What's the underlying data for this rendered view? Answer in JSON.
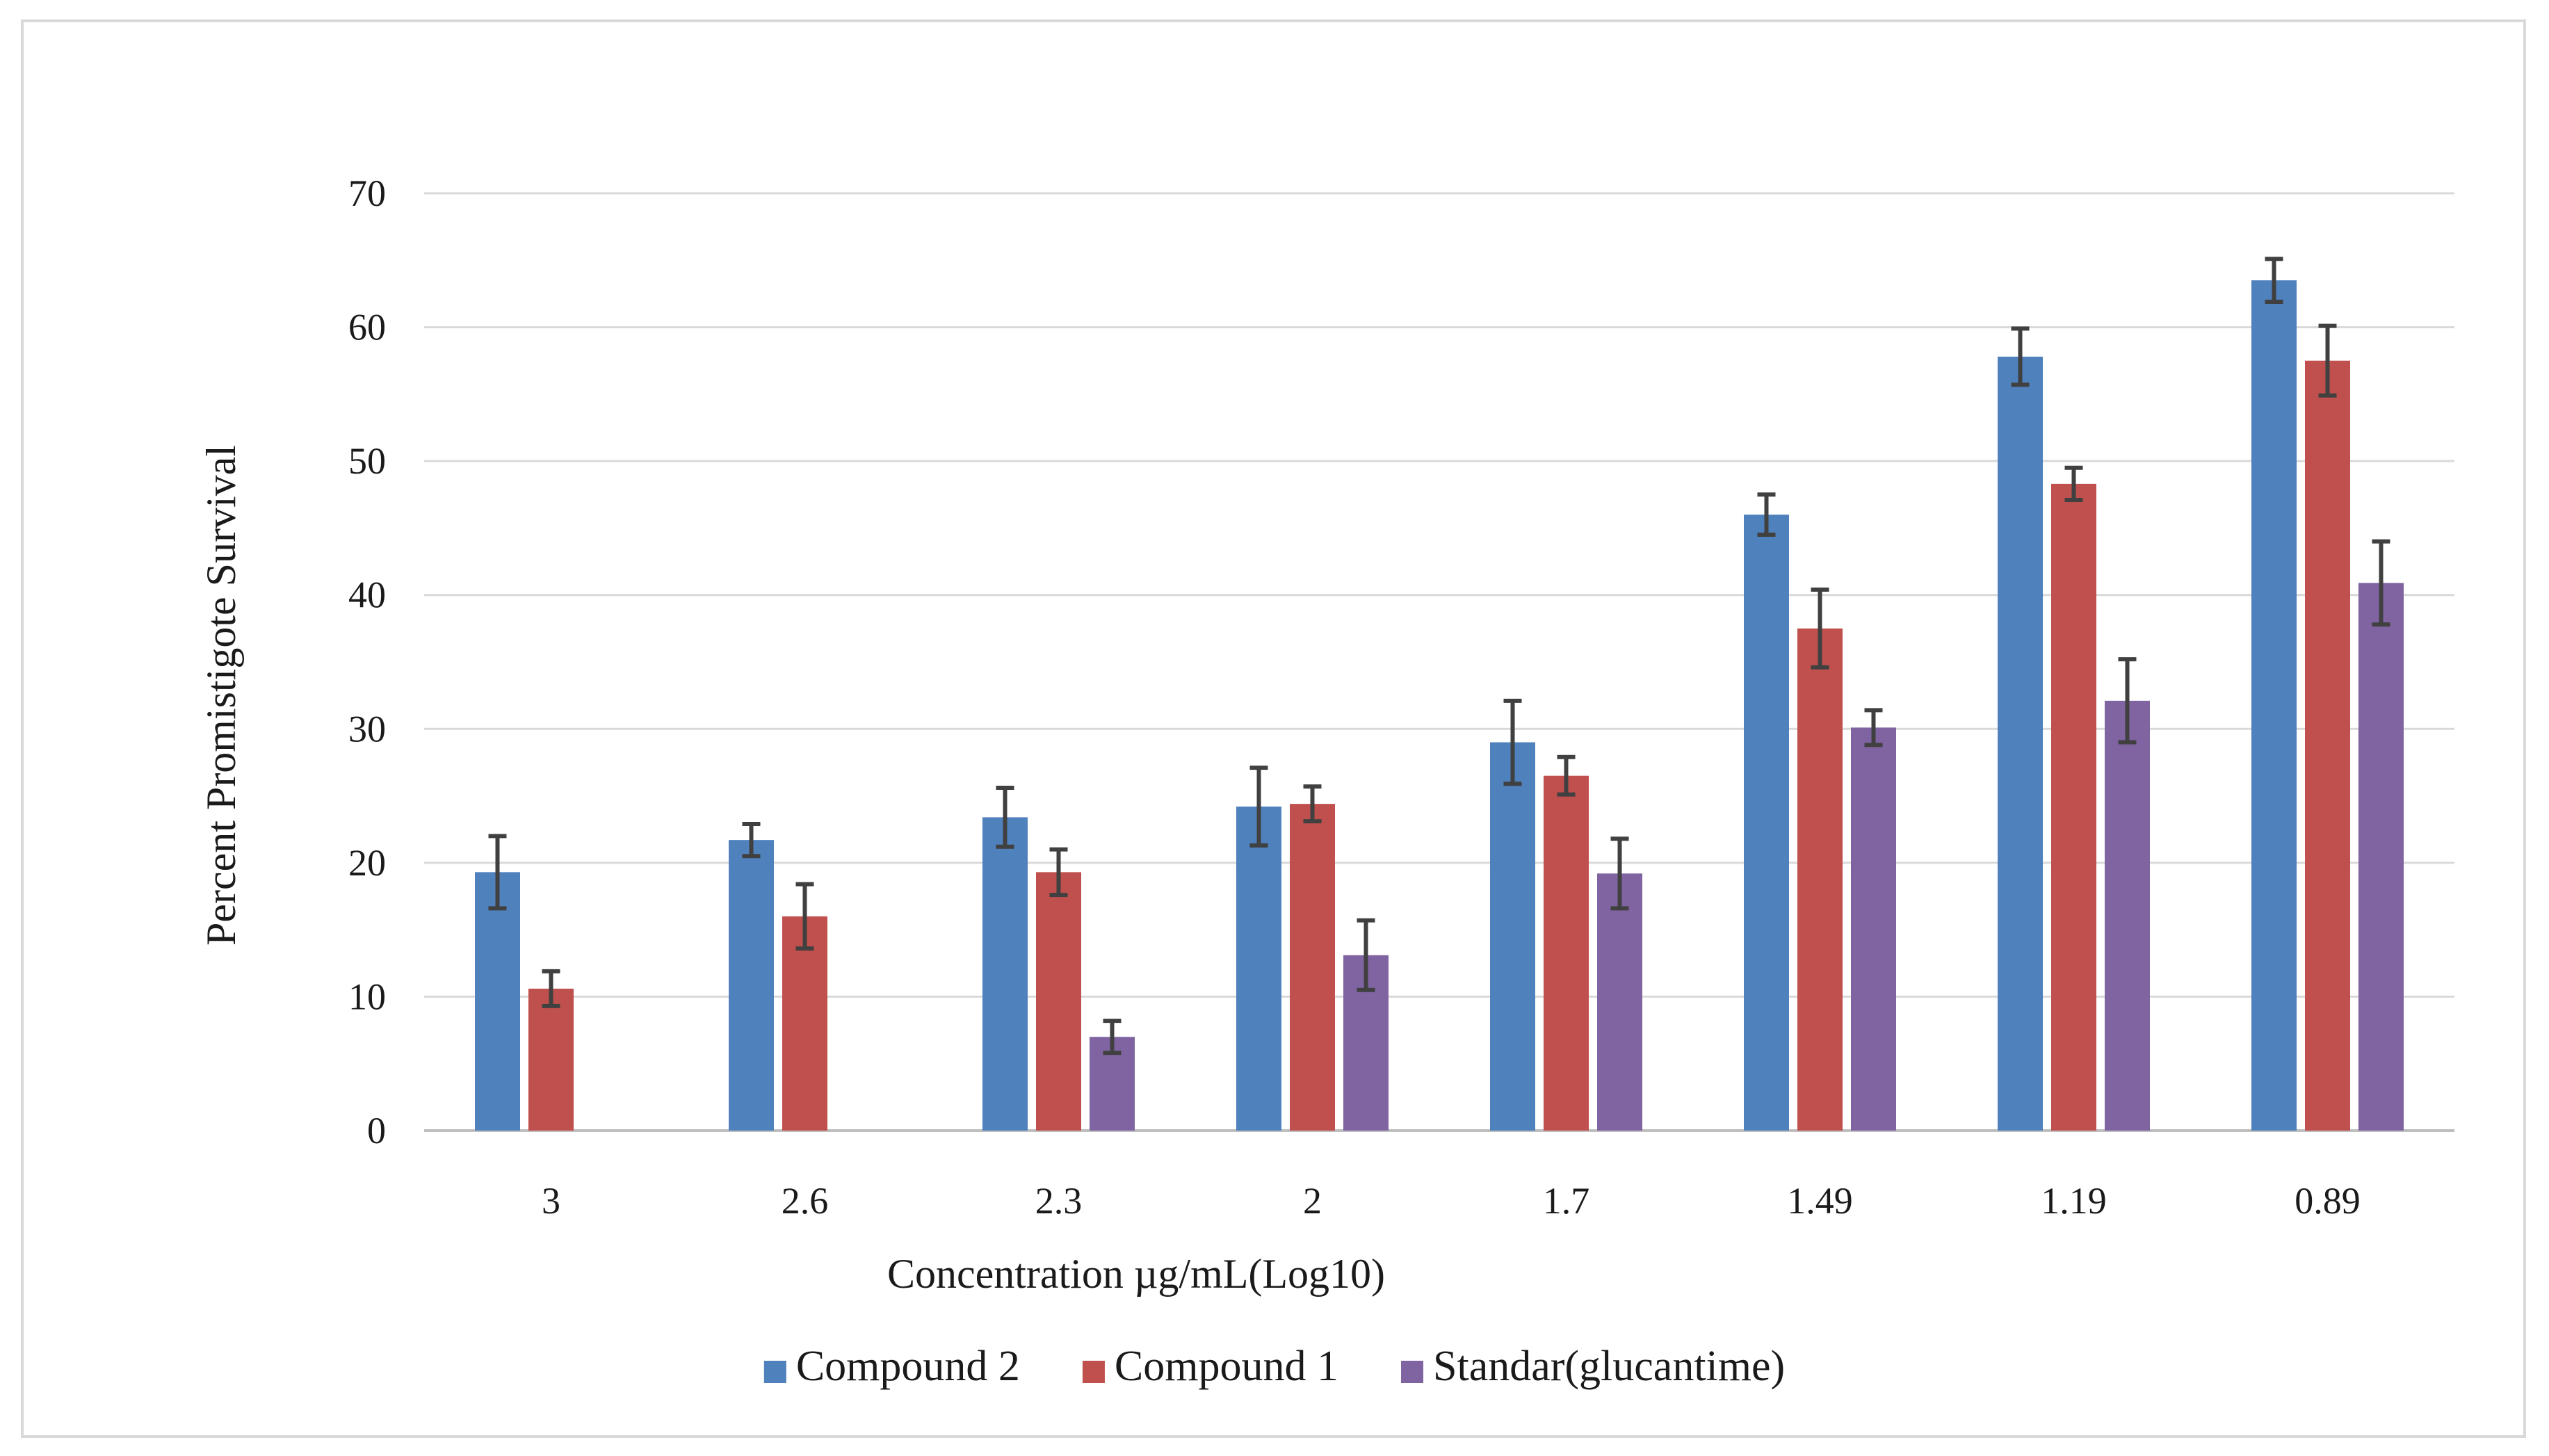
{
  "chart_data": {
    "type": "bar",
    "title": "",
    "xlabel": "Concentration µg/mL(Log10)",
    "ylabel": "Percent Promistigote Survival",
    "ylim": [
      0,
      70
    ],
    "yticks": [
      0,
      10,
      20,
      30,
      40,
      50,
      60,
      70
    ],
    "grid": true,
    "legend_position": "bottom",
    "categories": [
      "3",
      "2.6",
      "2.3",
      "2",
      "1.7",
      "1.49",
      "1.19",
      "0.89"
    ],
    "series": [
      {
        "name": "Compound 2",
        "color": "#4f81bd",
        "values": [
          19.3,
          21.7,
          23.4,
          24.2,
          29.0,
          46.0,
          57.8,
          63.5
        ],
        "errors": [
          2.7,
          1.2,
          2.2,
          2.9,
          3.1,
          1.5,
          2.1,
          1.6
        ]
      },
      {
        "name": "Compound 1",
        "color": "#c0504d",
        "values": [
          10.6,
          16.0,
          19.3,
          24.4,
          26.5,
          37.5,
          48.3,
          57.5
        ],
        "errors": [
          1.3,
          2.4,
          1.7,
          1.3,
          1.4,
          2.9,
          1.2,
          2.6
        ]
      },
      {
        "name": "Standar(glucantime)",
        "color": "#8064a2",
        "values": [
          null,
          null,
          7.0,
          13.1,
          19.2,
          30.1,
          32.1,
          40.9
        ],
        "errors": [
          null,
          null,
          1.2,
          2.6,
          2.6,
          1.3,
          3.1,
          3.1
        ]
      }
    ],
    "colors": {
      "gridline": "#d9d9d9",
      "axis": "#bfbfbf",
      "error_bar": "#404040",
      "text": "#1a1a1a"
    }
  }
}
